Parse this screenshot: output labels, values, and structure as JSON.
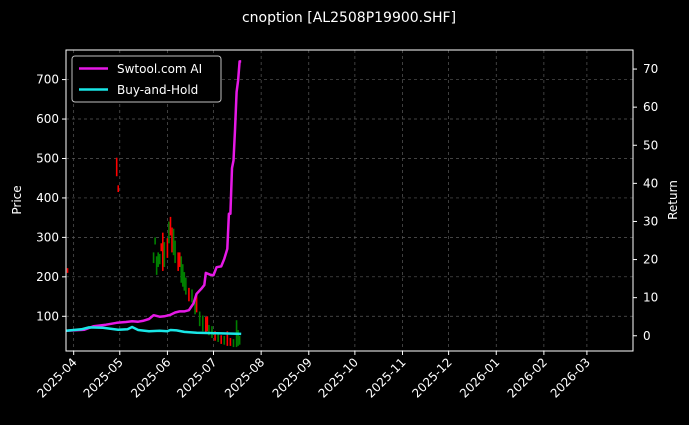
{
  "chart_data": {
    "type": "line",
    "title": "cnoption [AL2508P19900.SHF]",
    "ylabel": "Price",
    "y2label": "Return",
    "background": "#000000",
    "grid": true,
    "legend_position": "top-left",
    "xlim": [
      "2025-03-27",
      "2026-03-31"
    ],
    "ylim": [
      12,
      775
    ],
    "y2lim": [
      -4,
      75
    ],
    "x_ticks": [
      "2025-04",
      "2025-05",
      "2025-06",
      "2025-07",
      "2025-08",
      "2025-09",
      "2025-10",
      "2025-11",
      "2025-12",
      "2026-01",
      "2026-02",
      "2026-03"
    ],
    "x_tick_dates": [
      "2025-04-01",
      "2025-05-01",
      "2025-06-01",
      "2025-07-01",
      "2025-08-01",
      "2025-09-01",
      "2025-10-01",
      "2025-11-01",
      "2025-12-01",
      "2026-01-01",
      "2026-02-01",
      "2026-03-01"
    ],
    "y_ticks": [
      100,
      200,
      300,
      400,
      500,
      600,
      700
    ],
    "y2_ticks": [
      0,
      10,
      20,
      30,
      40,
      50,
      60,
      70
    ],
    "series": [
      {
        "name": "Swtool.com AI",
        "axis": "right",
        "color": "#e619e6",
        "points": [
          [
            "2025-03-27",
            1.3
          ],
          [
            "2025-04-08",
            1.6
          ],
          [
            "2025-04-14",
            2.5
          ],
          [
            "2025-04-22",
            2.9
          ],
          [
            "2025-04-29",
            3.4
          ],
          [
            "2025-05-05",
            3.6
          ],
          [
            "2025-05-09",
            3.8
          ],
          [
            "2025-05-13",
            3.7
          ],
          [
            "2025-05-16",
            3.9
          ],
          [
            "2025-05-20",
            4.4
          ],
          [
            "2025-05-23",
            5.4
          ],
          [
            "2025-05-27",
            5.0
          ],
          [
            "2025-05-30",
            5.1
          ],
          [
            "2025-06-03",
            5.5
          ],
          [
            "2025-06-06",
            6.1
          ],
          [
            "2025-06-09",
            6.4
          ],
          [
            "2025-06-12",
            6.4
          ],
          [
            "2025-06-15",
            6.7
          ],
          [
            "2025-06-18",
            8.5
          ],
          [
            "2025-06-20",
            11.0
          ],
          [
            "2025-06-23",
            12.3
          ],
          [
            "2025-06-25",
            13.3
          ],
          [
            "2025-06-26",
            16.5
          ],
          [
            "2025-06-29",
            16.0
          ],
          [
            "2025-07-01",
            15.9
          ],
          [
            "2025-07-03",
            18.0
          ],
          [
            "2025-07-06",
            18.2
          ],
          [
            "2025-07-08",
            20.2
          ],
          [
            "2025-07-10",
            22.8
          ],
          [
            "2025-07-11",
            32.0
          ],
          [
            "2025-07-12",
            32.0
          ],
          [
            "2025-07-13",
            44.0
          ],
          [
            "2025-07-14",
            46.0
          ],
          [
            "2025-07-15",
            54.0
          ],
          [
            "2025-07-16",
            64.0
          ],
          [
            "2025-07-17",
            67.0
          ],
          [
            "2025-07-18",
            72.0
          ],
          [
            "2025-07-19",
            72.0
          ]
        ]
      },
      {
        "name": "Buy-and-Hold",
        "axis": "right",
        "color": "#19e6e6",
        "points": [
          [
            "2025-03-27",
            1.3
          ],
          [
            "2025-04-06",
            1.7
          ],
          [
            "2025-04-11",
            2.2
          ],
          [
            "2025-04-20",
            2.1
          ],
          [
            "2025-04-30",
            1.6
          ],
          [
            "2025-05-06",
            1.7
          ],
          [
            "2025-05-09",
            2.3
          ],
          [
            "2025-05-13",
            1.5
          ],
          [
            "2025-05-20",
            1.2
          ],
          [
            "2025-05-27",
            1.3
          ],
          [
            "2025-06-01",
            1.2
          ],
          [
            "2025-06-03",
            1.5
          ],
          [
            "2025-06-07",
            1.4
          ],
          [
            "2025-06-12",
            1.0
          ],
          [
            "2025-06-20",
            0.8
          ],
          [
            "2025-06-30",
            0.7
          ],
          [
            "2025-07-10",
            0.6
          ],
          [
            "2025-07-19",
            0.5
          ]
        ]
      }
    ],
    "candles": [
      {
        "date": "2025-03-28",
        "low": 210,
        "high": 222,
        "color": "#ff0000"
      },
      {
        "date": "2025-04-29",
        "low": 455,
        "high": 502,
        "color": "#ff0000"
      },
      {
        "date": "2025-04-30",
        "low": 415,
        "high": 432,
        "color": "#ff0000"
      },
      {
        "date": "2025-05-23",
        "low": 235,
        "high": 262,
        "color": "#008000"
      },
      {
        "date": "2025-05-24",
        "low": 282,
        "high": 300,
        "color": "#008000"
      },
      {
        "date": "2025-05-25",
        "low": 205,
        "high": 252,
        "color": "#008000"
      },
      {
        "date": "2025-05-26",
        "low": 225,
        "high": 262,
        "color": "#008000"
      },
      {
        "date": "2025-05-27",
        "low": 232,
        "high": 258,
        "color": "#008000"
      },
      {
        "date": "2025-05-28",
        "low": 265,
        "high": 285,
        "color": "#ff0000"
      },
      {
        "date": "2025-05-29",
        "low": 215,
        "high": 312,
        "color": "#ff0000"
      },
      {
        "date": "2025-05-30",
        "low": 225,
        "high": 288,
        "color": "#008000"
      },
      {
        "date": "2025-06-01",
        "low": 248,
        "high": 298,
        "color": "#ff0000"
      },
      {
        "date": "2025-06-02",
        "low": 285,
        "high": 340,
        "color": "#008000"
      },
      {
        "date": "2025-06-03",
        "low": 305,
        "high": 352,
        "color": "#ff0000"
      },
      {
        "date": "2025-06-04",
        "low": 262,
        "high": 325,
        "color": "#ff0000"
      },
      {
        "date": "2025-06-05",
        "low": 255,
        "high": 322,
        "color": "#008000"
      },
      {
        "date": "2025-06-06",
        "low": 235,
        "high": 292,
        "color": "#008000"
      },
      {
        "date": "2025-06-08",
        "low": 215,
        "high": 262,
        "color": "#ff0000"
      },
      {
        "date": "2025-06-09",
        "low": 225,
        "high": 262,
        "color": "#ff0000"
      },
      {
        "date": "2025-06-10",
        "low": 185,
        "high": 252,
        "color": "#008000"
      },
      {
        "date": "2025-06-11",
        "low": 175,
        "high": 232,
        "color": "#008000"
      },
      {
        "date": "2025-06-12",
        "low": 165,
        "high": 212,
        "color": "#008000"
      },
      {
        "date": "2025-06-13",
        "low": 155,
        "high": 198,
        "color": "#008000"
      },
      {
        "date": "2025-06-15",
        "low": 138,
        "high": 172,
        "color": "#ff0000"
      },
      {
        "date": "2025-06-17",
        "low": 135,
        "high": 168,
        "color": "#008000"
      },
      {
        "date": "2025-06-19",
        "low": 105,
        "high": 140,
        "color": "#008000"
      },
      {
        "date": "2025-06-20",
        "low": 110,
        "high": 158,
        "color": "#ff0000"
      },
      {
        "date": "2025-06-22",
        "low": 75,
        "high": 112,
        "color": "#008000"
      },
      {
        "date": "2025-06-24",
        "low": 62,
        "high": 102,
        "color": "#008000"
      },
      {
        "date": "2025-06-26",
        "low": 58,
        "high": 98,
        "color": "#ff0000"
      },
      {
        "date": "2025-06-27",
        "low": 62,
        "high": 100,
        "color": "#ff0000"
      },
      {
        "date": "2025-06-28",
        "low": 52,
        "high": 78,
        "color": "#008000"
      },
      {
        "date": "2025-06-30",
        "low": 45,
        "high": 75,
        "color": "#008000"
      },
      {
        "date": "2025-07-02",
        "low": 38,
        "high": 62,
        "color": "#ff0000"
      },
      {
        "date": "2025-07-04",
        "low": 35,
        "high": 55,
        "color": "#008000"
      },
      {
        "date": "2025-07-06",
        "low": 30,
        "high": 52,
        "color": "#ff0000"
      },
      {
        "date": "2025-07-08",
        "low": 28,
        "high": 50,
        "color": "#008000"
      },
      {
        "date": "2025-07-10",
        "low": 25,
        "high": 62,
        "color": "#ff0000"
      },
      {
        "date": "2025-07-12",
        "low": 25,
        "high": 45,
        "color": "#ff0000"
      },
      {
        "date": "2025-07-14",
        "low": 22,
        "high": 42,
        "color": "#008000"
      },
      {
        "date": "2025-07-16",
        "low": 22,
        "high": 90,
        "color": "#008000"
      },
      {
        "date": "2025-07-17",
        "low": 25,
        "high": 65,
        "color": "#008000"
      },
      {
        "date": "2025-07-18",
        "low": 28,
        "high": 50,
        "color": "#008000"
      }
    ]
  }
}
